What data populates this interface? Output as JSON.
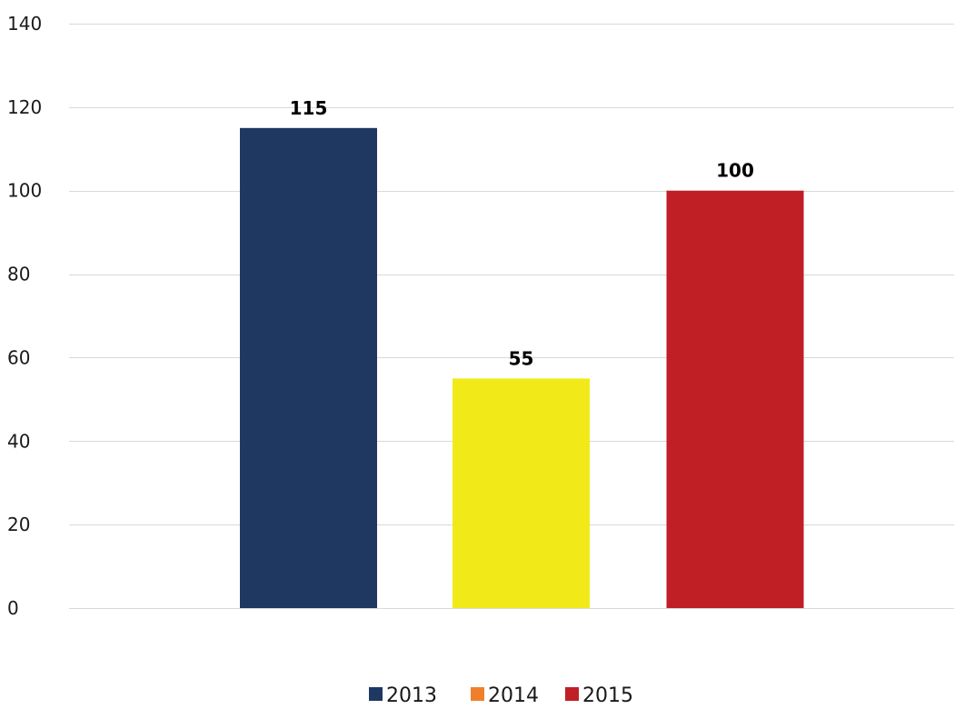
{
  "chart_data": {
    "type": "bar",
    "title": "",
    "xlabel": "",
    "ylabel": "",
    "ylim": [
      0,
      140
    ],
    "yticks": [
      0,
      20,
      40,
      60,
      80,
      100,
      120,
      140
    ],
    "grid": true,
    "legend_position": "bottom-center",
    "series": [
      {
        "name": "2013",
        "value": 115,
        "color": "#1e3862",
        "legend_color": "#1e3862"
      },
      {
        "name": "2014",
        "value": 55,
        "color": "#f2ea18",
        "legend_color": "#f07f2c"
      },
      {
        "name": "2015",
        "value": 100,
        "color": "#c01f26",
        "legend_color": "#c01f26"
      }
    ]
  }
}
